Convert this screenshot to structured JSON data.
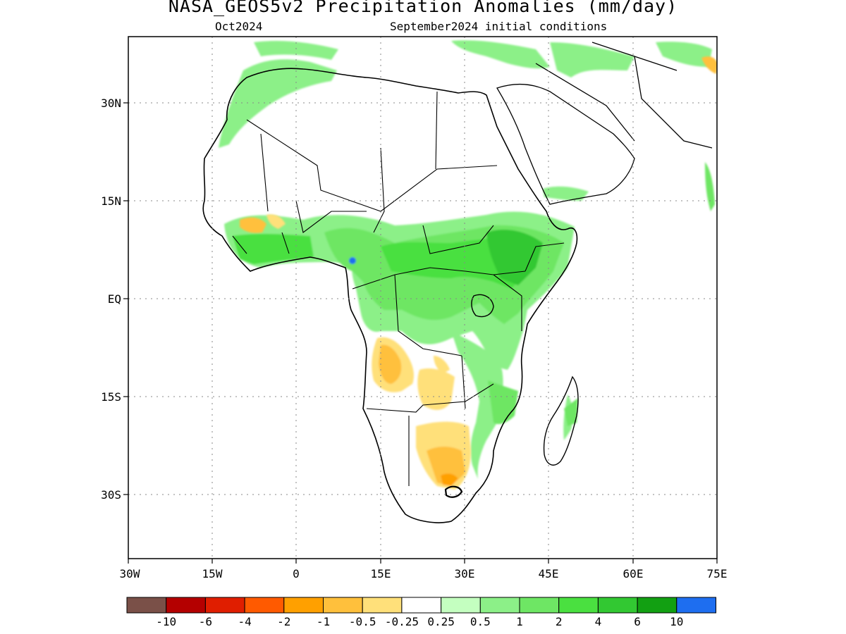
{
  "title": "NASA_GEOS5v2 Precipitation Anomalies (mm/day)",
  "subtitle_left": "Oct2024",
  "subtitle_right": "September2024 initial conditions",
  "map": {
    "lon_range": [
      -30,
      75
    ],
    "lat_range": [
      -40,
      40
    ],
    "x_ticks": [
      "30W",
      "15W",
      "0",
      "15E",
      "30E",
      "45E",
      "60E",
      "75E"
    ],
    "y_ticks": [
      "30N",
      "15N",
      "EQ",
      "15S",
      "30S"
    ],
    "gridlines": "dotted"
  },
  "legend": {
    "colors": [
      "#7a5048",
      "#b40000",
      "#e01e00",
      "#ff5a00",
      "#ffa000",
      "#ffc03c",
      "#ffe07a",
      "#ffffff",
      "#c4ffc0",
      "#8cf088",
      "#6ee664",
      "#4ae040",
      "#32c832",
      "#12a012",
      "#1e6ef0"
    ],
    "labels": [
      "-10",
      "-6",
      "-4",
      "-2",
      "-1",
      "-0.5",
      "-0.25",
      "0.25",
      "0.5",
      "1",
      "2",
      "4",
      "6",
      "10"
    ]
  }
}
